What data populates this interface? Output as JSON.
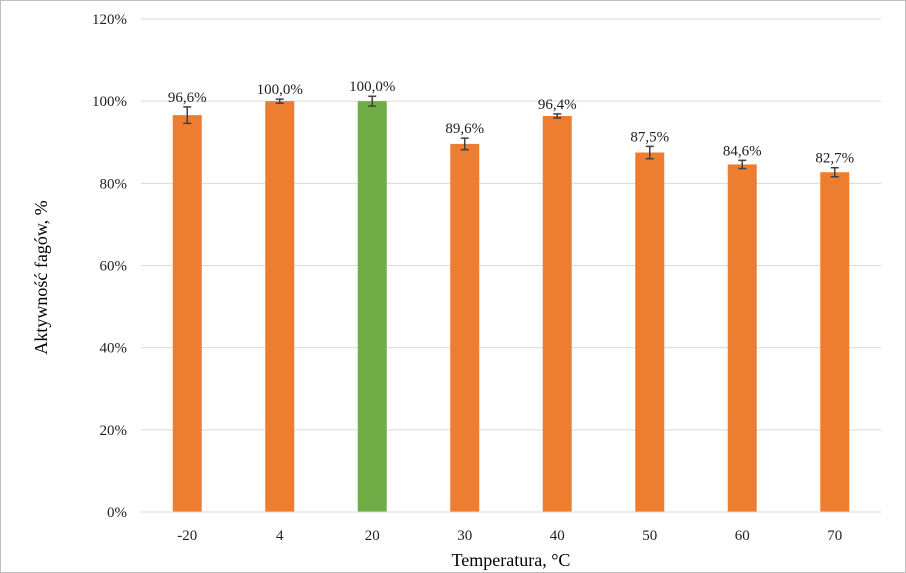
{
  "chart_data": {
    "type": "bar",
    "xlabel": "Temperatura, °C",
    "ylabel": "Aktywność fagów, %",
    "categories": [
      "-20",
      "4",
      "20",
      "30",
      "40",
      "50",
      "60",
      "70"
    ],
    "values": [
      96.6,
      100.0,
      100.0,
      89.6,
      96.4,
      87.5,
      84.6,
      82.7
    ],
    "data_labels": [
      "96,6%",
      "100,0%",
      "100,0%",
      "89,6%",
      "96,4%",
      "87,5%",
      "84,6%",
      "82,7%"
    ],
    "error": [
      2.0,
      0.5,
      1.2,
      1.4,
      0.5,
      1.5,
      1.0,
      1.1
    ],
    "colors": [
      "#ED7D31",
      "#ED7D31",
      "#70AD47",
      "#ED7D31",
      "#ED7D31",
      "#ED7D31",
      "#ED7D31",
      "#ED7D31"
    ],
    "ylim": [
      0,
      120
    ],
    "yticks": [
      0,
      20,
      40,
      60,
      80,
      100,
      120
    ],
    "ytick_labels": [
      "0%",
      "20%",
      "40%",
      "60%",
      "80%",
      "100%",
      "120%"
    ],
    "grid": true,
    "legend": "none",
    "gridline_color": "#d9d9d9",
    "errorbar_color": "#404040"
  }
}
